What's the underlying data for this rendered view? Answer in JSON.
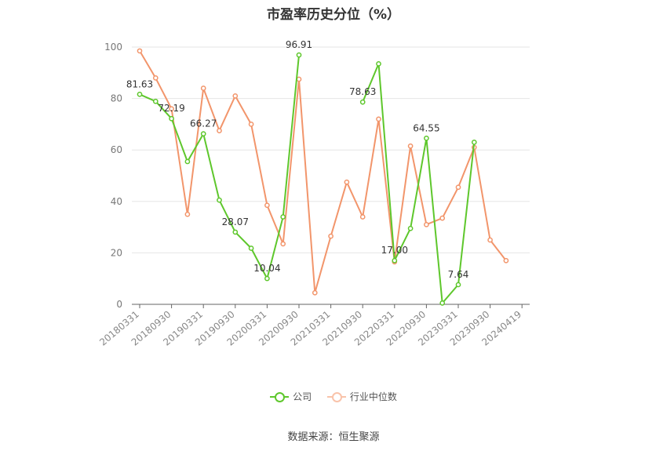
{
  "chart_data": {
    "type": "line",
    "title": "市盈率历史分位（%）",
    "x_ticks": [
      "20180331",
      "20180930",
      "20190331",
      "20190930",
      "20200331",
      "20200930",
      "20210331",
      "20210930",
      "20220331",
      "20220930",
      "20230331",
      "20230930",
      "20240419"
    ],
    "y_ticks": [
      "0",
      "20",
      "40",
      "60",
      "80",
      "100"
    ],
    "ylim": [
      0,
      100
    ],
    "grid": true,
    "legend_position": "bottom",
    "series": [
      {
        "name": "公司",
        "color": "#5ec72c",
        "values": [
          81.63,
          78.9,
          72.19,
          55.5,
          66.27,
          40.5,
          28.07,
          21.8,
          10.04,
          34.0,
          96.91,
          null,
          null,
          null,
          78.63,
          93.5,
          17.0,
          29.5,
          64.55,
          0.5,
          7.64,
          63.0,
          null,
          null
        ]
      },
      {
        "name": "行业中位数",
        "color": "#f2956b",
        "values": [
          98.5,
          88.0,
          76.0,
          35.0,
          84.0,
          67.5,
          81.0,
          70.0,
          38.5,
          23.5,
          87.5,
          4.5,
          26.5,
          47.5,
          34.0,
          72.0,
          16.5,
          61.5,
          31.0,
          33.5,
          45.5,
          61.0,
          25.0,
          17.0
        ]
      }
    ],
    "data_labels": [
      {
        "series": 0,
        "index": 0,
        "text": "81.63"
      },
      {
        "series": 0,
        "index": 2,
        "text": "72.19"
      },
      {
        "series": 0,
        "index": 4,
        "text": "66.27"
      },
      {
        "series": 0,
        "index": 6,
        "text": "28.07"
      },
      {
        "series": 0,
        "index": 8,
        "text": "10.04"
      },
      {
        "series": 0,
        "index": 10,
        "text": "96.91"
      },
      {
        "series": 0,
        "index": 14,
        "text": "78.63"
      },
      {
        "series": 0,
        "index": 16,
        "text": "17.00"
      },
      {
        "series": 0,
        "index": 18,
        "text": "64.55"
      },
      {
        "series": 0,
        "index": 20,
        "text": "7.64"
      }
    ]
  },
  "source_text": "数据来源：恒生聚源"
}
